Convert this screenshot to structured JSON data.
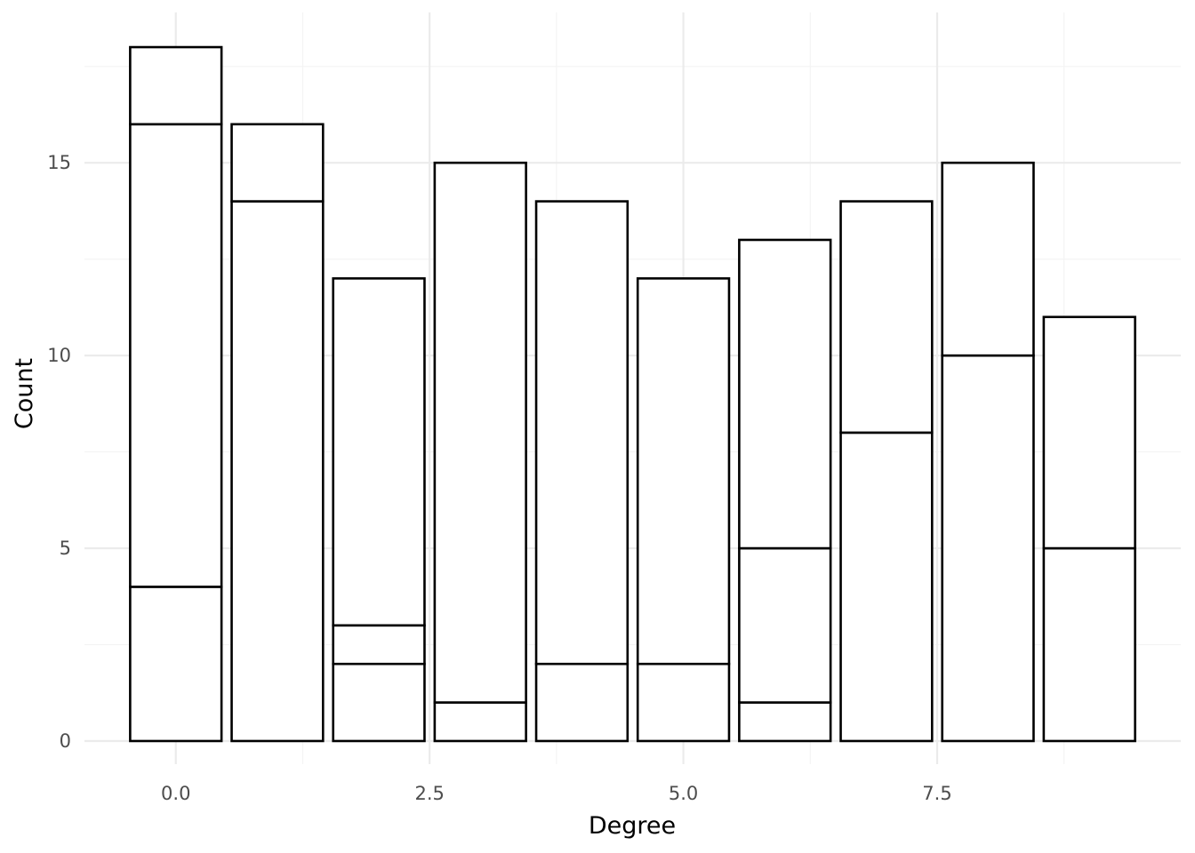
{
  "chart_data": {
    "type": "bar",
    "stacked": true,
    "title": "",
    "xlabel": "Degree",
    "ylabel": "Count",
    "xlim": [
      -0.9,
      9.9
    ],
    "ylim": [
      -0.6,
      18.9
    ],
    "x_ticks": [
      0,
      2.5,
      5,
      7.5
    ],
    "x_tick_labels": [
      "0.0",
      "2.5",
      "5.0",
      "7.5"
    ],
    "y_ticks": [
      0,
      5,
      10,
      15
    ],
    "y_tick_labels": [
      "0",
      "5",
      "10",
      "15"
    ],
    "grid": true,
    "legend": "none",
    "colors": {
      "fill": "#ffffff",
      "stroke": "#000000",
      "grid_major": "#ebebeb",
      "grid_minor": "#f4f4f4"
    },
    "bars": [
      {
        "x": 0,
        "total": 18,
        "breaks": [
          4,
          16
        ]
      },
      {
        "x": 1,
        "total": 16,
        "breaks": [
          14
        ]
      },
      {
        "x": 2,
        "total": 12,
        "breaks": [
          2,
          3
        ]
      },
      {
        "x": 3,
        "total": 15,
        "breaks": [
          1
        ]
      },
      {
        "x": 4,
        "total": 14,
        "breaks": [
          2
        ]
      },
      {
        "x": 5,
        "total": 12,
        "breaks": [
          2
        ]
      },
      {
        "x": 6,
        "total": 13,
        "breaks": [
          1,
          5
        ]
      },
      {
        "x": 7,
        "total": 14,
        "breaks": [
          8
        ]
      },
      {
        "x": 8,
        "total": 15,
        "breaks": [
          10
        ]
      },
      {
        "x": 9,
        "total": 11,
        "breaks": [
          5
        ]
      }
    ]
  }
}
